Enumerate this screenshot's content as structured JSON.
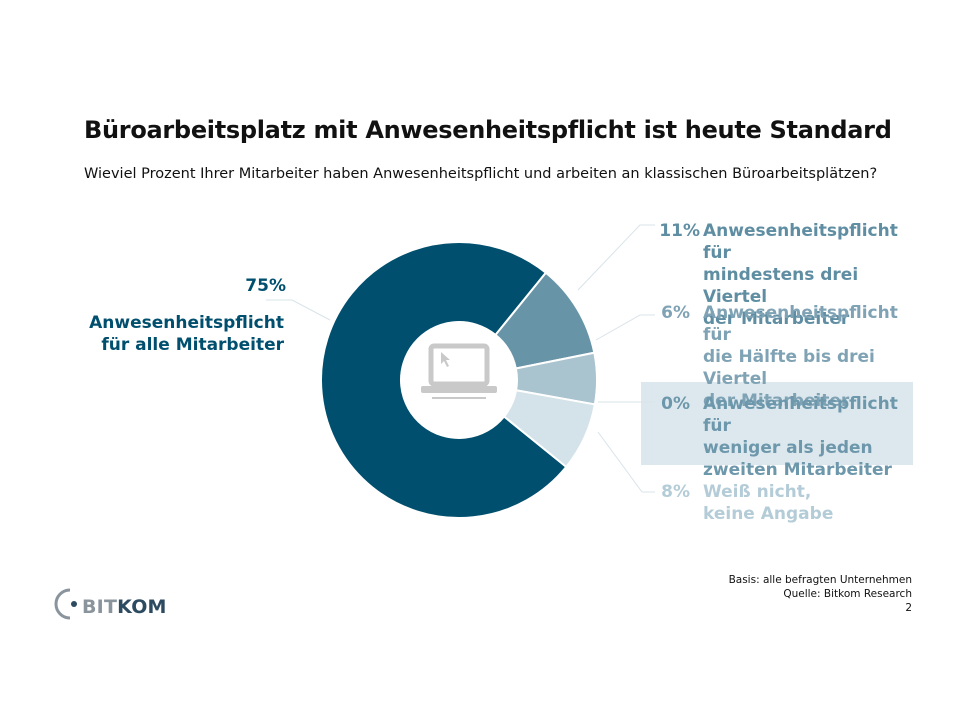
{
  "title": "Büroarbeitsplatz mit Anwesenheitspflicht ist heute Standard",
  "subtitle": "Wieviel Prozent Ihrer Mitarbeiter haben Anwesenheitspflicht und arbeiten an klassischen Büroarbeitsplätzen?",
  "chart_data": {
    "type": "pie",
    "variant": "donut",
    "slices": [
      {
        "percent_label": "75%",
        "value": 75,
        "label_lines": [
          "Anwesenheitspflicht",
          "für alle Mitarbeiter"
        ],
        "color": "#004f6e"
      },
      {
        "percent_label": "11%",
        "value": 11,
        "label_lines": [
          "Anwesenheitspflicht für",
          "mindestens drei Viertel",
          "der Mitarbeiter"
        ],
        "color": "#6894a8"
      },
      {
        "percent_label": "6%",
        "value": 6,
        "label_lines": [
          "Anwesenheitspflicht für",
          "die Hälfte bis drei Viertel",
          "der Mitarbeiter"
        ],
        "color": "#a9c3cf"
      },
      {
        "percent_label": "0%",
        "value": 0,
        "label_lines": [
          "Anwesenheitspflicht für",
          "weniger als jeden",
          "zweiten Mitarbeiter"
        ],
        "color": "#6d97ab"
      },
      {
        "percent_label": "8%",
        "value": 8,
        "label_lines": [
          "Weiß nicht,",
          "keine Angabe"
        ],
        "color": "#d4e2e9"
      }
    ],
    "center_icon": "laptop-icon"
  },
  "footer": {
    "basis": "Basis: alle befragten Unternehmen",
    "source": "Quelle: Bitkom Research",
    "page": "2"
  },
  "logo": {
    "part1": "BIT",
    "part2": "KOM"
  }
}
